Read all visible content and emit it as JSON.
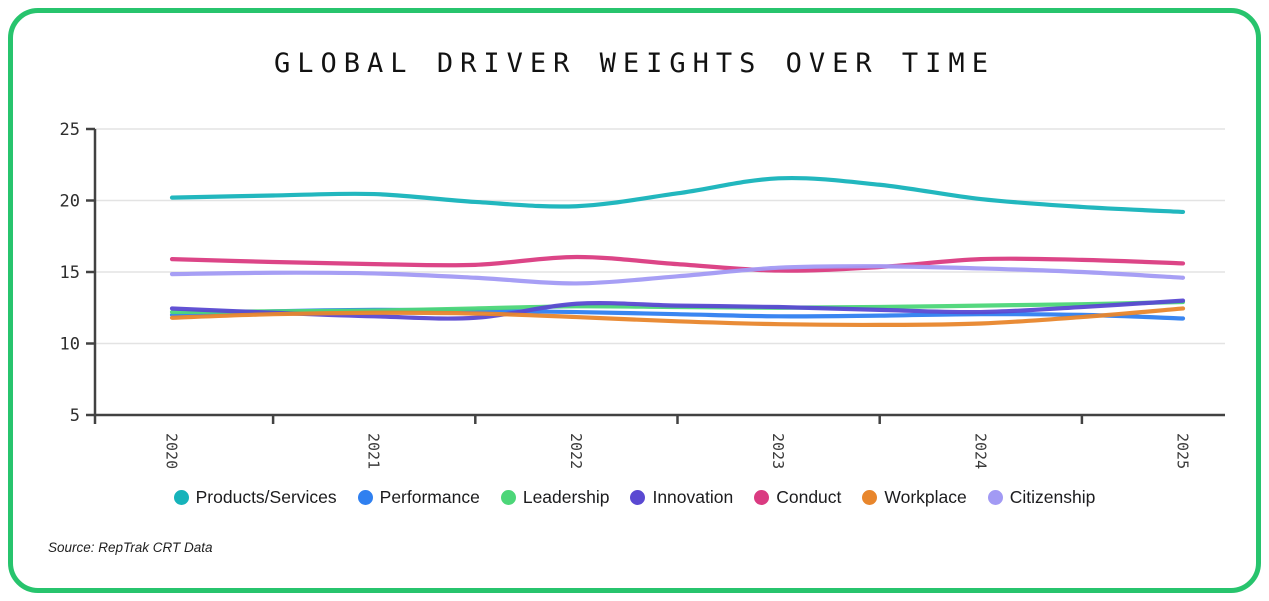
{
  "title": "GLOBAL DRIVER WEIGHTS OVER TIME",
  "source": "Source: RepTrak CRT Data",
  "card": {
    "border_color": "#27c46d",
    "background": "#ffffff"
  },
  "chart_data": {
    "type": "line",
    "title": "GLOBAL DRIVER WEIGHTS OVER TIME",
    "xlabel": "",
    "ylabel": "",
    "x": [
      2020,
      2020.5,
      2021,
      2021.5,
      2022,
      2022.5,
      2023,
      2023.5,
      2024,
      2024.5,
      2025
    ],
    "x_tick_labels": [
      "2020",
      "2021",
      "2022",
      "2023",
      "2024",
      "2025"
    ],
    "y_ticks": [
      25,
      20,
      15,
      10,
      5
    ],
    "ylim": [
      5,
      25
    ],
    "grid": "horizontal",
    "grid_color": "#e3e3e3",
    "axis_color": "#424242",
    "legend_position": "bottom",
    "series": [
      {
        "name": "Products/Services",
        "color": "#16b3ba",
        "values": [
          20.2,
          20.35,
          20.45,
          19.9,
          19.6,
          20.5,
          21.55,
          21.1,
          20.1,
          19.55,
          19.2
        ]
      },
      {
        "name": "Performance",
        "color": "#2f80f0",
        "values": [
          12.0,
          12.25,
          12.35,
          12.3,
          12.2,
          12.05,
          11.9,
          11.95,
          12.05,
          12.0,
          11.75
        ]
      },
      {
        "name": "Leadership",
        "color": "#4cd678",
        "values": [
          12.2,
          12.25,
          12.3,
          12.45,
          12.6,
          12.55,
          12.5,
          12.55,
          12.65,
          12.75,
          12.9
        ]
      },
      {
        "name": "Innovation",
        "color": "#5a49d2",
        "values": [
          12.45,
          12.15,
          11.9,
          11.8,
          12.78,
          12.65,
          12.55,
          12.35,
          12.2,
          12.55,
          13.0
        ]
      },
      {
        "name": "Conduct",
        "color": "#da3b81",
        "values": [
          15.9,
          15.7,
          15.55,
          15.5,
          16.05,
          15.55,
          15.1,
          15.35,
          15.9,
          15.85,
          15.6
        ]
      },
      {
        "name": "Workplace",
        "color": "#e8862c",
        "values": [
          11.8,
          12.05,
          12.15,
          12.1,
          11.85,
          11.55,
          11.35,
          11.3,
          11.4,
          11.85,
          12.45
        ]
      },
      {
        "name": "Citizenship",
        "color": "#a29af4",
        "values": [
          14.85,
          14.95,
          14.9,
          14.6,
          14.2,
          14.7,
          15.3,
          15.4,
          15.25,
          15.0,
          14.6
        ]
      }
    ]
  }
}
